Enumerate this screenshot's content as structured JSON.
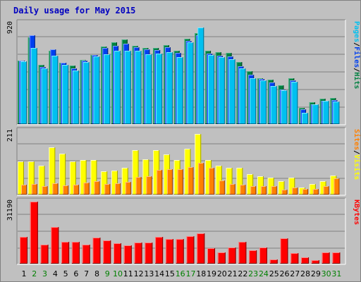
{
  "chart_data": {
    "type": "bar",
    "title": "Daily usage for May 2015",
    "categories": [
      "1",
      "2",
      "3",
      "4",
      "5",
      "6",
      "7",
      "8",
      "9",
      "10",
      "11",
      "12",
      "13",
      "14",
      "15",
      "16",
      "17",
      "18",
      "19",
      "20",
      "21",
      "22",
      "23",
      "24",
      "25",
      "26",
      "27",
      "28",
      "29",
      "30",
      "31"
    ],
    "weekend_days": [
      2,
      3,
      9,
      10,
      16,
      17,
      23,
      24,
      30,
      31
    ],
    "colors": {
      "title": "#0000c0",
      "background": "#c0c0c0",
      "weekday_label": "#000000",
      "weekend_label": "#008000",
      "pages": "#00c0f0",
      "files": "#0040f0",
      "hits": "#008040",
      "visits": "#ffff00",
      "sites": "#ff8000",
      "kbytes": "#ff0000"
    },
    "panels": [
      {
        "id": "hits",
        "ymax_label": "920",
        "ylim": [
          0,
          920
        ],
        "series": [
          {
            "name": "Hits",
            "values": [
              578,
              790,
              541,
              666,
              562,
              532,
              583,
              631,
              709,
              745,
              770,
              714,
              696,
              696,
              719,
              667,
              780,
              830,
              666,
              658,
              648,
              565,
              481,
              420,
              406,
              351,
              418,
              150,
              197,
              229,
              235
            ]
          },
          {
            "name": "Files",
            "values": [
              579,
              808,
              524,
              682,
              560,
              509,
              581,
              633,
              696,
              716,
              734,
              702,
              683,
              676,
              701,
              652,
              758,
              808,
              641,
              622,
              615,
              527,
              450,
              412,
              378,
              317,
              397,
              136,
              178,
              210,
              217
            ]
          },
          {
            "name": "Pages",
            "values": [
              570,
              693,
              507,
              625,
              542,
              489,
              564,
              618,
              638,
              666,
              668,
              670,
              637,
              646,
              655,
              610,
              748,
              880,
              631,
              612,
              595,
              509,
              420,
              397,
              347,
              310,
              388,
              105,
              179,
              212,
              206
            ]
          }
        ],
        "axis_label": [
          {
            "text": "Pages",
            "key": "pages"
          },
          {
            "text": "/",
            "key": "sep"
          },
          {
            "text": "Files",
            "key": "files"
          },
          {
            "text": "/",
            "key": "sep"
          },
          {
            "text": "Hits",
            "key": "hits"
          }
        ]
      },
      {
        "id": "visits",
        "ymax_label": "211",
        "ylim": [
          0,
          211
        ],
        "series": [
          {
            "name": "Visits",
            "values": [
              111,
              111,
              96,
              157,
              136,
              110,
              116,
              116,
              77,
              79,
              90,
              147,
              117,
              147,
              133,
              114,
              152,
              202,
              114,
              97,
              88,
              89,
              67,
              60,
              57,
              44,
              56,
              23,
              34,
              44,
              64
            ]
          },
          {
            "name": "Sites",
            "values": [
              33,
              35,
              28,
              37,
              31,
              32,
              40,
              45,
              36,
              37,
              42,
              58,
              62,
              82,
              85,
              85,
              92,
              105,
              88,
              48,
              36,
              32,
              27,
              29,
              27,
              16,
              24,
              19,
              19,
              28,
              55
            ]
          }
        ],
        "axis_label": [
          {
            "text": "Sites",
            "key": "sites"
          },
          {
            "text": "/",
            "key": "sep"
          },
          {
            "text": "Visits",
            "key": "visits"
          }
        ]
      },
      {
        "id": "kbytes",
        "ymax_label": "31190",
        "ylim": [
          0,
          31190
        ],
        "series": [
          {
            "name": "KBytes",
            "values": [
              13500,
              31190,
              9700,
              18400,
              11000,
              11000,
              9500,
              13100,
              11700,
              10300,
              9200,
              10700,
              10800,
              13600,
              12400,
              12400,
              13700,
              15400,
              7800,
              5800,
              8000,
              10900,
              6600,
              8200,
              2200,
              12800,
              5200,
              3300,
              1900,
              5700,
              5700
            ]
          }
        ],
        "axis_label": [
          {
            "text": "KBytes",
            "key": "kbytes"
          }
        ]
      }
    ]
  }
}
